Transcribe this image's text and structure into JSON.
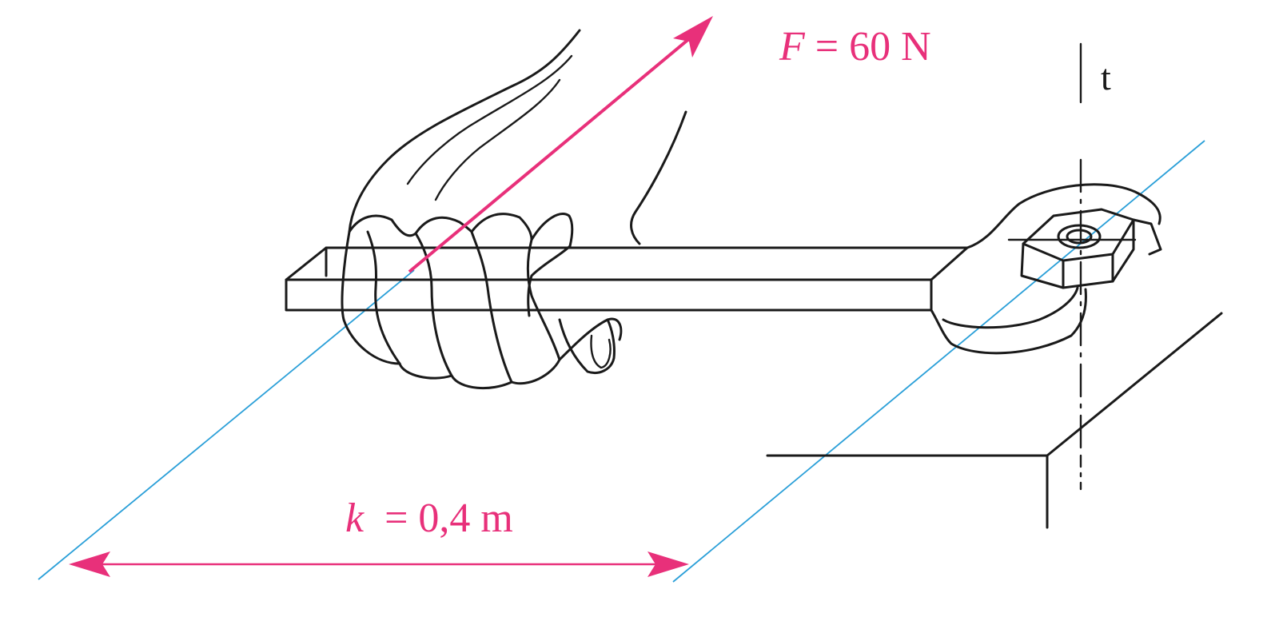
{
  "force": {
    "symbol": "F",
    "value_text": " = 60 N"
  },
  "lever_arm": {
    "symbol": "k",
    "value_text": "  = 0,4 m"
  },
  "axis": {
    "label": "t"
  },
  "colors": {
    "force_and_dimension": "#e8307a",
    "reference_lines": "#2a9fd8",
    "ink": "#1a1a1a"
  }
}
